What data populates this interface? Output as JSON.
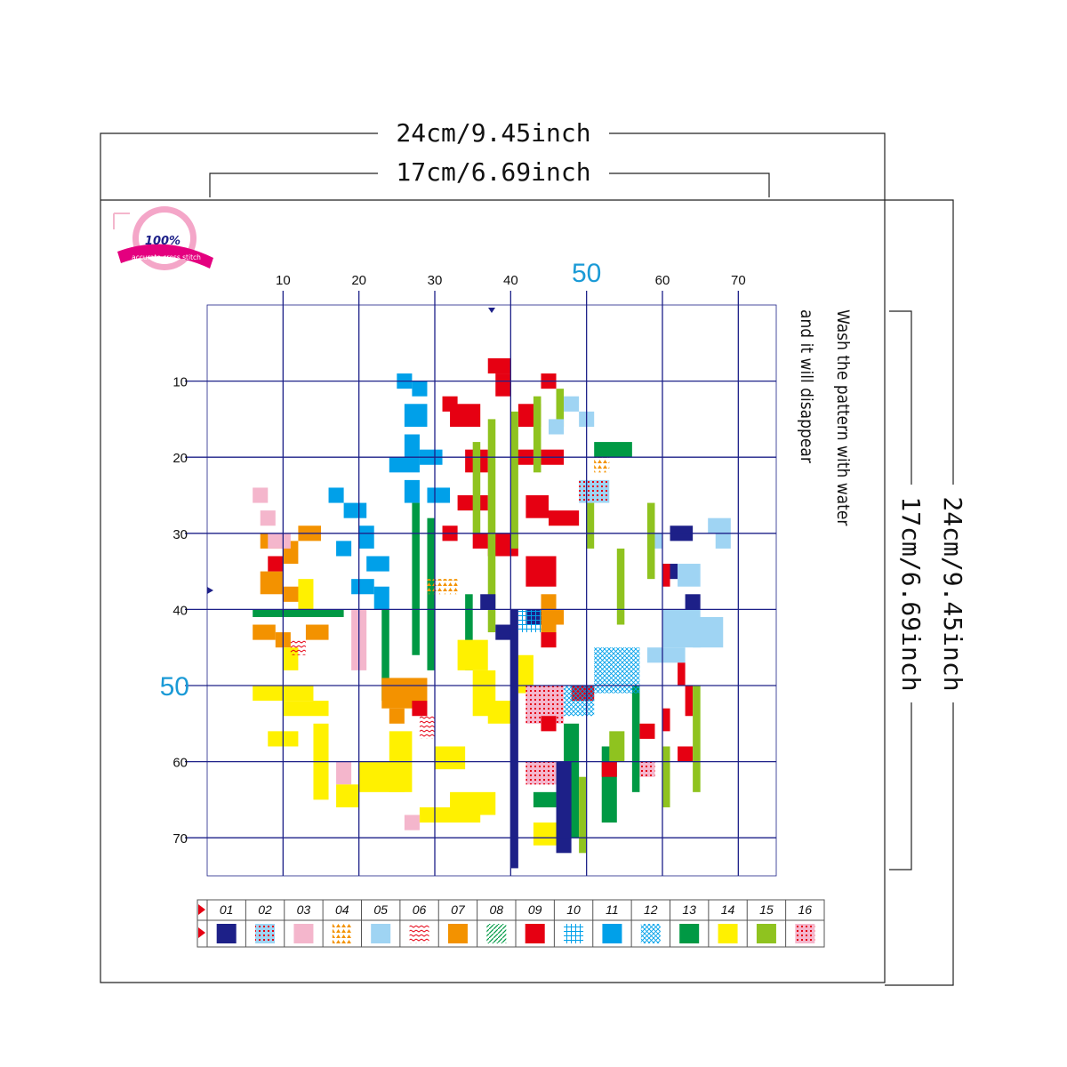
{
  "dimensions": {
    "outer_width": "24cm/9.45inch",
    "inner_width": "17cm/6.69inch",
    "outer_height": "24cm/9.45inch",
    "inner_height": "17cm/6.69inch"
  },
  "badge": {
    "percent": "100%",
    "text": "accurate cross stitch"
  },
  "note": [
    "Wash the pattern with water",
    "and it will disappear"
  ],
  "grid": {
    "xlim": [
      0,
      75
    ],
    "ylim": [
      0,
      75
    ],
    "ticks": [
      10,
      20,
      30,
      40,
      50,
      60,
      70
    ],
    "highlight": 50
  },
  "legend": [
    {
      "code": "01",
      "color": "#1d2088",
      "pattern": "solid"
    },
    {
      "code": "02",
      "color": "#9fd4f3",
      "pattern": "dots-blue"
    },
    {
      "code": "03",
      "color": "#f4b6cc",
      "pattern": "solid"
    },
    {
      "code": "04",
      "color": "#f39200",
      "pattern": "tri"
    },
    {
      "code": "05",
      "color": "#9fd4f3",
      "pattern": "solid"
    },
    {
      "code": "06",
      "color": "#e60012",
      "pattern": "chev"
    },
    {
      "code": "07",
      "color": "#f39200",
      "pattern": "solid"
    },
    {
      "code": "08",
      "color": "#009944",
      "pattern": "lines"
    },
    {
      "code": "09",
      "color": "#e60012",
      "pattern": "solid"
    },
    {
      "code": "10",
      "color": "#00a0e9",
      "pattern": "grid"
    },
    {
      "code": "11",
      "color": "#00a0e9",
      "pattern": "solid"
    },
    {
      "code": "12",
      "color": "#00a0e9",
      "pattern": "cross"
    },
    {
      "code": "13",
      "color": "#009944",
      "pattern": "solid"
    },
    {
      "code": "14",
      "color": "#fff100",
      "pattern": "solid"
    },
    {
      "code": "15",
      "color": "#8fc31f",
      "pattern": "solid"
    },
    {
      "code": "16",
      "color": "#e60012",
      "pattern": "dots-pink"
    }
  ]
}
